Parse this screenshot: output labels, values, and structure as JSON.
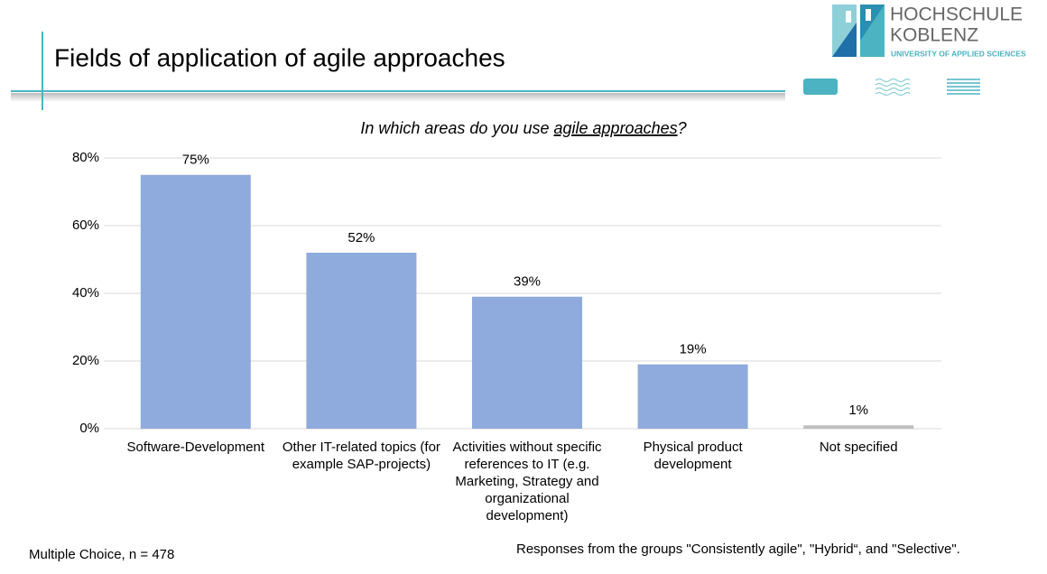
{
  "header": {
    "title": "Fields of application of agile approaches",
    "logo": {
      "line1": "HOCHSCHULE",
      "line2": "KOBLENZ",
      "line3": "UNIVERSITY OF APPLIED SCIENCES"
    }
  },
  "chart_data": {
    "type": "bar",
    "subtitle": {
      "prefix": "In which areas do you use ",
      "emphasis": "agile approaches",
      "suffix": "?"
    },
    "categories": [
      "Software-Development",
      "Other IT-related topics (for example SAP-projects)",
      "Activities without specific references to IT (e.g. Marketing, Strategy and organizational development)",
      "Physical product development",
      "Not specified"
    ],
    "values": [
      75,
      52,
      39,
      19,
      1
    ],
    "value_labels": [
      "75%",
      "52%",
      "39%",
      "19%",
      "1%"
    ],
    "colors": [
      "#8faadc",
      "#8faadc",
      "#8faadc",
      "#8faadc",
      "#bfbfbf"
    ],
    "ylim": [
      0,
      80
    ],
    "yticks": [
      {
        "value": 0,
        "label": "0%"
      },
      {
        "value": 20,
        "label": "20%"
      },
      {
        "value": 40,
        "label": "40%"
      },
      {
        "value": 60,
        "label": "60%"
      },
      {
        "value": 80,
        "label": "80%"
      }
    ],
    "grid": true
  },
  "footer": {
    "left": "Multiple Choice, n = 478",
    "right": "Responses from the groups \"Consistently agile\", \"Hybrid“, and \"Selective\"."
  }
}
